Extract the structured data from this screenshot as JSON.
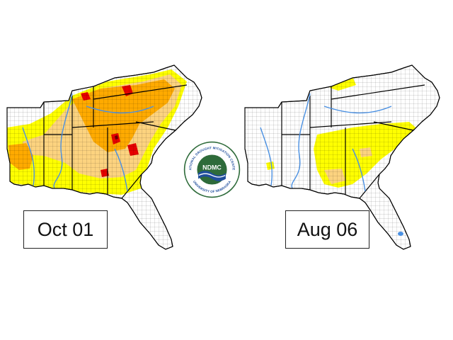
{
  "maps": [
    {
      "date_label": "Oct 01"
    },
    {
      "date_label": "Aug 06"
    }
  ],
  "logo": {
    "badge_text": "NDMC",
    "ring_text_top": "NATIONAL DROUGHT MITIGATION CENTER",
    "ring_text_bottom": "UNIVERSITY OF NEBRASKA"
  },
  "legend_colors": {
    "d0_abnormally_dry": "#ffff00",
    "d1_moderate": "#fcd37f",
    "d2_severe": "#ffaa00",
    "d3_extreme": "#e60000",
    "d4_exceptional": "#730000",
    "rivers": "#4a90e2",
    "ndmc_green": "#2e6b3a",
    "ndmc_blue": "#1f4e9c"
  }
}
